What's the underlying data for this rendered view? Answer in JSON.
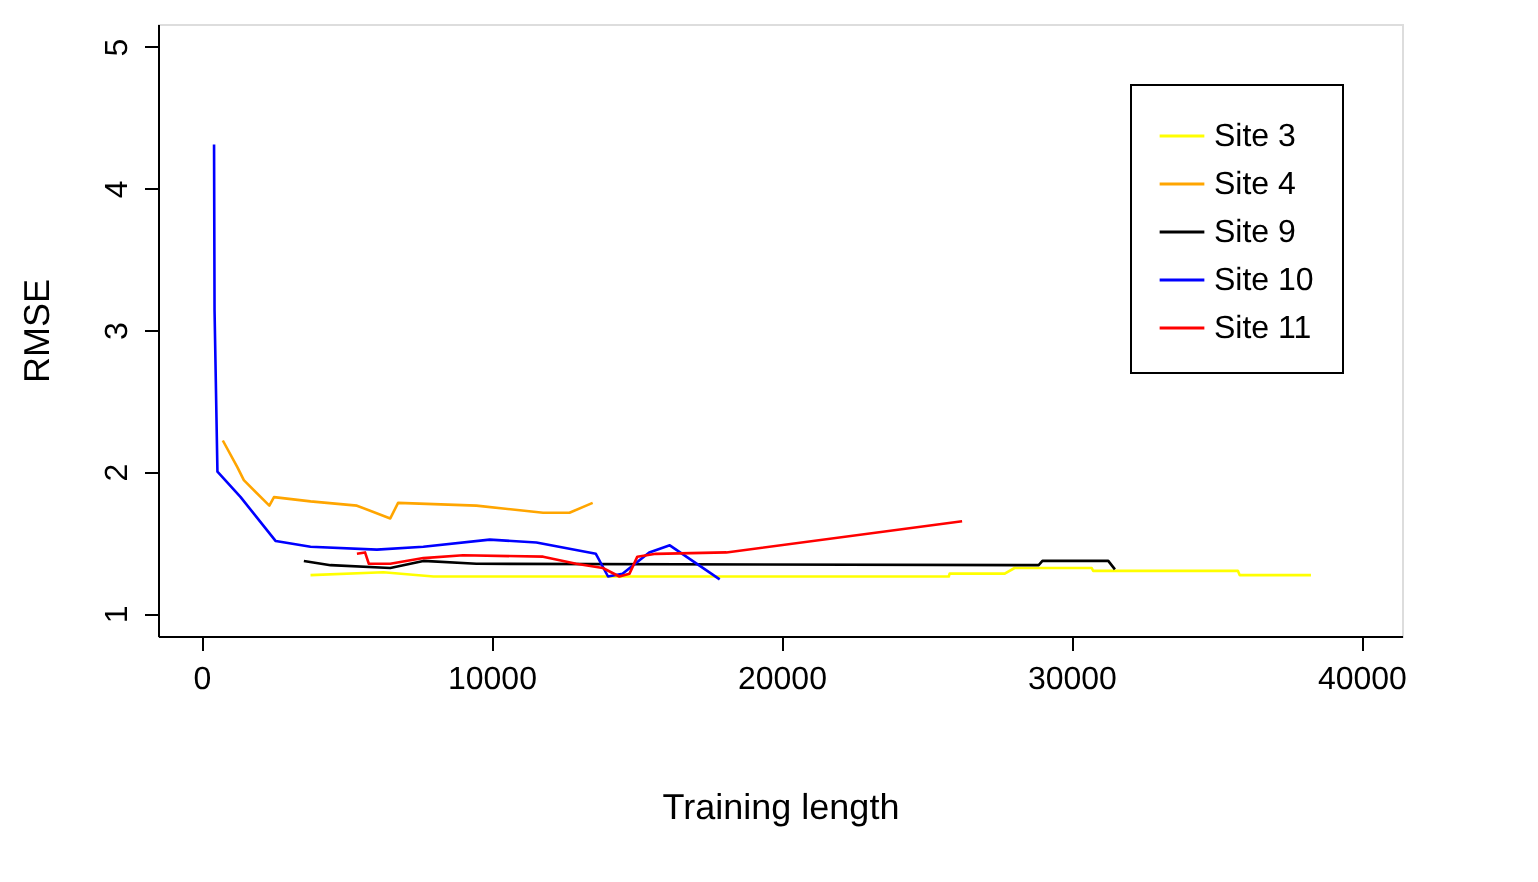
{
  "chart_data": {
    "type": "line",
    "xlabel": "Training length",
    "ylabel": "RMSE",
    "xlim": [
      -1500,
      41400
    ],
    "ylim": [
      0.84,
      5.16
    ],
    "xticks": [
      0,
      10000,
      20000,
      30000,
      40000
    ],
    "yticks": [
      1,
      2,
      3,
      4,
      5
    ],
    "grid": false,
    "legend": "top right",
    "line_style": "solid",
    "marker": "none",
    "series": [
      {
        "name": "Site 3",
        "color": "#ffff00",
        "x": [
          3760,
          6270,
          8000,
          25770,
          25800,
          27700,
          28040,
          30700,
          30750,
          35740,
          35800,
          38260
        ],
        "values": [
          1.27,
          1.29,
          1.26,
          1.26,
          1.28,
          1.28,
          1.32,
          1.32,
          1.3,
          1.3,
          1.27,
          1.27
        ]
      },
      {
        "name": "Site 4",
        "color": "#ffa500",
        "x": [
          735,
          1240,
          1460,
          2340,
          2500,
          3760,
          5360,
          6510,
          6780,
          9480,
          11780,
          12690,
          13490
        ],
        "values": [
          2.22,
          2.03,
          1.94,
          1.76,
          1.82,
          1.79,
          1.76,
          1.67,
          1.78,
          1.76,
          1.71,
          1.71,
          1.78
        ]
      },
      {
        "name": "Site 9",
        "color": "#000000",
        "x": [
          3530,
          4450,
          6510,
          7650,
          9480,
          28870,
          29000,
          31270,
          31500
        ],
        "values": [
          1.37,
          1.34,
          1.32,
          1.37,
          1.35,
          1.34,
          1.37,
          1.37,
          1.31
        ]
      },
      {
        "name": "Site 10",
        "color": "#0000ff",
        "x": [
          433,
          450,
          550,
          1350,
          2560,
          3760,
          6050,
          7650,
          9940,
          11550,
          13600,
          14020,
          14520,
          15440,
          16150,
          17870
        ],
        "values": [
          4.31,
          3.14,
          2.0,
          1.82,
          1.51,
          1.47,
          1.45,
          1.47,
          1.52,
          1.5,
          1.42,
          1.26,
          1.28,
          1.43,
          1.48,
          1.24
        ]
      },
      {
        "name": "Site 11",
        "color": "#ff0000",
        "x": [
          5360,
          5640,
          5770,
          6510,
          7650,
          9020,
          11780,
          12920,
          13840,
          14410,
          14760,
          15030,
          15670,
          18100,
          26230
        ],
        "values": [
          1.42,
          1.43,
          1.35,
          1.35,
          1.39,
          1.41,
          1.4,
          1.35,
          1.32,
          1.26,
          1.28,
          1.4,
          1.42,
          1.43,
          1.65
        ]
      }
    ]
  }
}
